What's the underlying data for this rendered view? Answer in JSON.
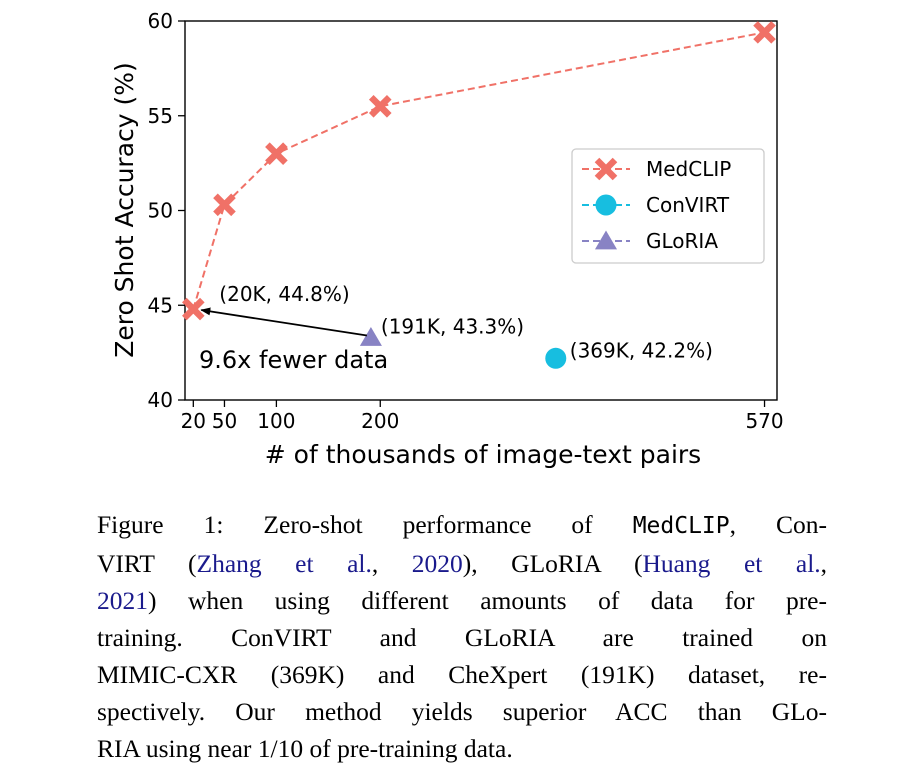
{
  "chart_data": {
    "type": "scatter",
    "xlabel": "# of thousands of image-text pairs",
    "ylabel": "Zero Shot Accuracy (%)",
    "xlim": [
      12,
      582
    ],
    "ylim": [
      40,
      60
    ],
    "xticks": [
      20,
      50,
      100,
      200,
      570
    ],
    "xtick_labels": [
      "20",
      "50",
      "100",
      "200",
      "570"
    ],
    "yticks": [
      40,
      45,
      50,
      55,
      60
    ],
    "yaxis_direction": "up",
    "grid": false,
    "legend_position": "center-right",
    "series": [
      {
        "name": "MedCLIP",
        "marker": "x",
        "line": "dashed",
        "color": "#f07167",
        "x": [
          20,
          50,
          100,
          200,
          570
        ],
        "y": [
          44.8,
          50.3,
          53.0,
          55.5,
          59.4
        ]
      },
      {
        "name": "ConVIRT",
        "marker": "circle",
        "line": "dashed",
        "color": "#17bee0",
        "x": [
          369
        ],
        "y": [
          42.2
        ]
      },
      {
        "name": "GLoRIA",
        "marker": "triangle",
        "line": "dashed",
        "color": "#8883c4",
        "x": [
          191
        ],
        "y": [
          43.3
        ]
      }
    ],
    "annotations": [
      {
        "text": "(20K, 44.8%)"
      },
      {
        "text": "(191K, 43.3%)"
      },
      {
        "text": "(369K, 42.2%)"
      },
      {
        "text": "9.6x fewer data"
      }
    ]
  },
  "caption": {
    "lines": [
      [
        {
          "t": "Figure 1:  Zero-shot performance of "
        },
        {
          "t": "MedCLIP",
          "s": "mono"
        },
        {
          "t": ", Con-"
        }
      ],
      [
        {
          "t": "VIRT ("
        },
        {
          "t": "Zhang et al.",
          "s": "link"
        },
        {
          "t": ", "
        },
        {
          "t": "2020",
          "s": "link"
        },
        {
          "t": "), GLoRIA ("
        },
        {
          "t": "Huang et al.",
          "s": "link"
        },
        {
          "t": ","
        }
      ],
      [
        {
          "t": "2021",
          "s": "link"
        },
        {
          "t": ") when using different amounts of data for pre-"
        }
      ],
      [
        {
          "t": "training.   ConVIRT and GLoRIA are trained on"
        }
      ],
      [
        {
          "t": "MIMIC-CXR (369K) and CheXpert (191K) dataset, re-"
        }
      ],
      [
        {
          "t": "spectively. Our method yields superior ACC than GLo-"
        }
      ],
      [
        {
          "t": "RIA using near "
        },
        {
          "t": "1/10",
          "s": "math"
        },
        {
          "t": " of pre-training data."
        }
      ]
    ]
  }
}
